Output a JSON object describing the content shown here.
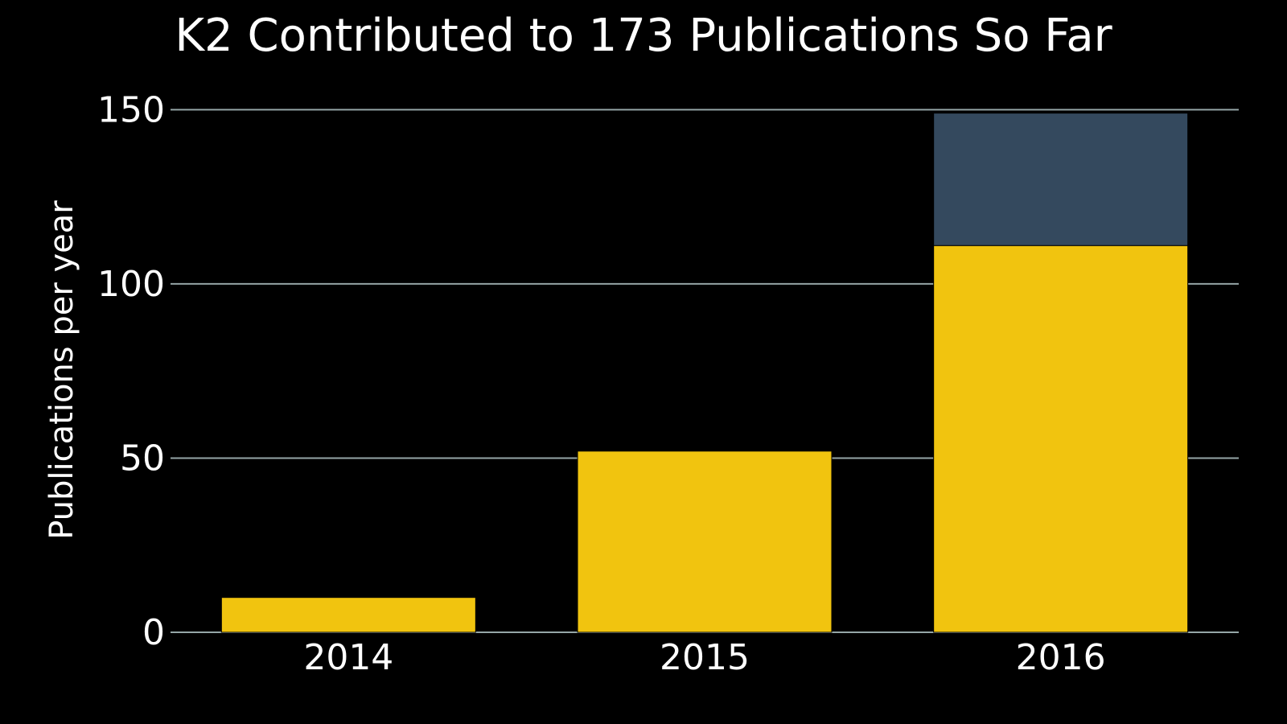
{
  "chart_data": {
    "type": "bar",
    "stacked": true,
    "title": "K2 Contributed to 173 Publications So Far",
    "xlabel": "",
    "ylabel": "Publications per year",
    "categories": [
      "2014",
      "2015",
      "2016"
    ],
    "series": [
      {
        "values": [
          10,
          52,
          111
        ],
        "color": "#f1c40f"
      },
      {
        "values": [
          0,
          0,
          38
        ],
        "color": "#34495e"
      }
    ],
    "ylim": [
      0,
      160
    ],
    "yticks": [
      0,
      50,
      100,
      150
    ],
    "grid": true,
    "colors": {
      "background": "#000000",
      "grid": "#95a5a6",
      "text": "#ffffff"
    }
  }
}
